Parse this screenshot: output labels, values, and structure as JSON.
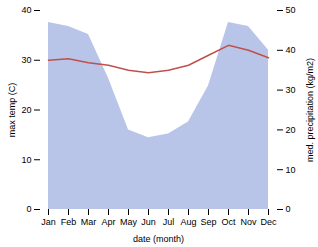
{
  "chart_data": {
    "type": "line",
    "categories": [
      "Jan",
      "Feb",
      "Mar",
      "Apr",
      "May",
      "Jun",
      "Jul",
      "Aug",
      "Sep",
      "Oct",
      "Nov",
      "Dec"
    ],
    "xlabel": "date (month)",
    "ylabel": "max temp (C)",
    "y2label": "med. precipitation (kg/m2)",
    "series": [
      {
        "type": "area",
        "axis": "y2",
        "color": "#b8c4e8",
        "values": [
          47,
          46,
          44,
          33,
          20,
          18,
          19,
          22,
          31,
          47,
          46,
          40
        ]
      },
      {
        "type": "line",
        "color": "#c0504d",
        "values": [
          30.0,
          30.3,
          29.5,
          29.0,
          28.0,
          27.5,
          28.0,
          29.0,
          31.0,
          33.0,
          32.0,
          30.5
        ]
      }
    ],
    "ylim": [
      0,
      40
    ],
    "yticks": [
      0,
      10,
      20,
      30,
      40
    ],
    "y2lim": [
      0,
      50
    ],
    "y2ticks": [
      0,
      10,
      20,
      30,
      40,
      50
    ]
  }
}
